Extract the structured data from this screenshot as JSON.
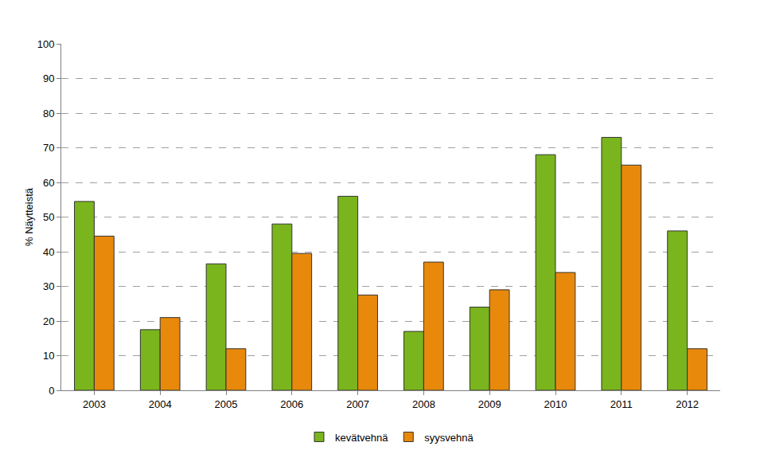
{
  "chart_data": {
    "type": "bar",
    "y_label": "% Näytteistä",
    "categories": [
      "2003",
      "2004",
      "2005",
      "2006",
      "2007",
      "2008",
      "2009",
      "2010",
      "2011",
      "2012"
    ],
    "series": [
      {
        "name": "kevätvehnä",
        "color": "#7ab51d",
        "values": [
          54.5,
          17.5,
          36.5,
          48,
          56,
          17,
          24,
          68,
          73,
          46
        ]
      },
      {
        "name": "syysvehnä",
        "color": "#e8890c",
        "values": [
          44.5,
          21,
          12,
          39.5,
          27.5,
          37,
          29,
          34,
          65,
          12
        ]
      }
    ],
    "ylim": [
      0,
      100
    ],
    "yticks": [
      0,
      10,
      20,
      30,
      40,
      50,
      60,
      70,
      80,
      90,
      100
    ],
    "grid": true,
    "legend": "bottom"
  }
}
